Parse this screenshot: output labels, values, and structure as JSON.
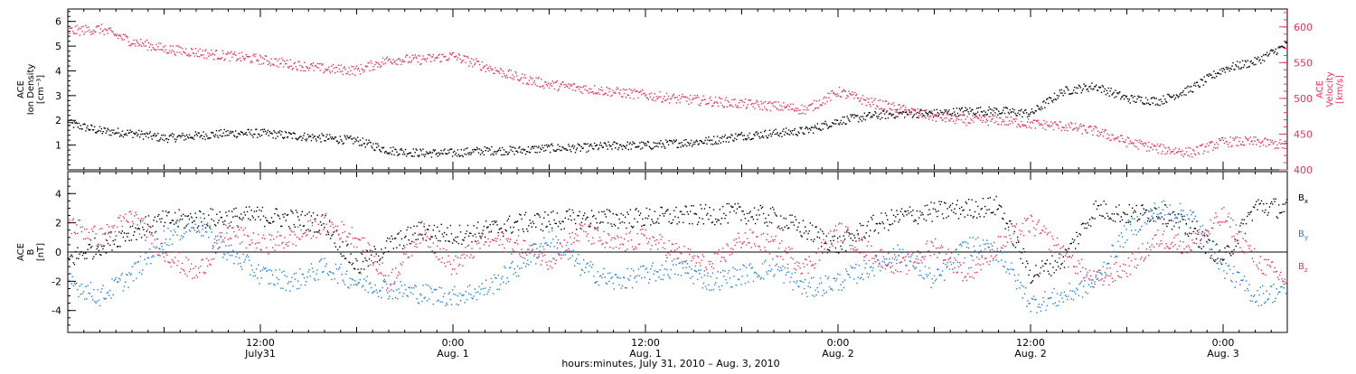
{
  "colors": {
    "density": "#000000",
    "velocity": "#e8325a",
    "bx": "#000000",
    "by": "#1e7fd6",
    "bz": "#e8325a",
    "axis": "#000000"
  },
  "xaxis": {
    "title": "hours:minutes, July 31, 2010 – Aug. 3, 2010",
    "ticks": [
      {
        "hour": 12,
        "time": "12:00",
        "date": "July31"
      },
      {
        "hour": 24,
        "time": "0:00",
        "date": "Aug. 1"
      },
      {
        "hour": 36,
        "time": "12:00",
        "date": "Aug. 1"
      },
      {
        "hour": 48,
        "time": "0:00",
        "date": "Aug. 2"
      },
      {
        "hour": 60,
        "time": "12:00",
        "date": "Aug. 2"
      },
      {
        "hour": 72,
        "time": "0:00",
        "date": "Aug. 3"
      }
    ]
  },
  "chart_data": [
    {
      "type": "scatter",
      "panel": "top",
      "xunit": "hours since 2010-07-31 00:00",
      "xlim": [
        0,
        76
      ],
      "ylabel_left": [
        "ACE",
        "Ion Density",
        "[cm⁻³]"
      ],
      "ylabel_right": [
        "ACE",
        "Velocity",
        "[km/s]"
      ],
      "ylim_left": [
        0,
        6.5
      ],
      "yticks_left": [
        1,
        2,
        3,
        4,
        5,
        6
      ],
      "ylim_right": [
        400,
        625
      ],
      "yticks_right": [
        400,
        450,
        500,
        550,
        600
      ],
      "series": [
        {
          "key": "density",
          "axis": "left",
          "x": [
            0,
            2,
            4,
            6,
            8,
            10,
            12,
            14,
            16,
            18,
            20,
            22,
            24,
            26,
            28,
            30,
            32,
            34,
            36,
            38,
            40,
            42,
            44,
            46,
            48,
            50,
            52,
            54,
            56,
            58,
            60,
            62,
            64,
            66,
            68,
            70,
            72,
            74,
            76
          ],
          "y": [
            1.9,
            1.6,
            1.5,
            1.3,
            1.4,
            1.5,
            1.5,
            1.4,
            1.3,
            1.2,
            0.8,
            0.7,
            0.7,
            0.8,
            0.8,
            0.9,
            0.9,
            1.0,
            1.0,
            1.1,
            1.2,
            1.4,
            1.5,
            1.6,
            2.0,
            2.2,
            2.3,
            2.3,
            2.4,
            2.4,
            2.3,
            3.2,
            3.4,
            2.9,
            2.8,
            3.3,
            4.1,
            4.4,
            5.1
          ]
        },
        {
          "key": "velocity",
          "axis": "right",
          "x": [
            0,
            2,
            4,
            6,
            8,
            10,
            12,
            14,
            16,
            18,
            20,
            22,
            24,
            26,
            28,
            30,
            32,
            34,
            36,
            38,
            40,
            42,
            44,
            46,
            48,
            50,
            52,
            54,
            56,
            58,
            60,
            62,
            64,
            66,
            68,
            70,
            72,
            74,
            76
          ],
          "y": [
            595,
            598,
            580,
            570,
            565,
            560,
            555,
            548,
            542,
            540,
            555,
            555,
            560,
            545,
            530,
            520,
            515,
            510,
            505,
            500,
            497,
            493,
            490,
            485,
            510,
            495,
            485,
            475,
            470,
            470,
            465,
            462,
            455,
            440,
            430,
            425,
            440,
            440,
            435
          ]
        }
      ]
    },
    {
      "type": "scatter",
      "panel": "bottom",
      "xunit": "hours since 2010-07-31 00:00",
      "xlim": [
        0,
        76
      ],
      "ylabel_left": [
        "ACE",
        "B",
        "[nT]"
      ],
      "ylim": [
        -5.5,
        5.5
      ],
      "yticks": [
        -4,
        -2,
        0,
        2,
        4
      ],
      "zero_line": true,
      "legend": "right",
      "series": [
        {
          "key": "bx",
          "name": "B",
          "sub": "x",
          "x": [
            0,
            2,
            4,
            6,
            8,
            10,
            12,
            14,
            16,
            18,
            20,
            22,
            24,
            26,
            28,
            30,
            32,
            34,
            36,
            38,
            40,
            42,
            44,
            46,
            48,
            50,
            52,
            54,
            56,
            58,
            60,
            62,
            64,
            66,
            68,
            70,
            72,
            74,
            76
          ],
          "y": [
            -0.5,
            0.5,
            1.5,
            2.2,
            2.3,
            2.4,
            2.5,
            2.3,
            2.0,
            -1.0,
            0.5,
            1.5,
            1.2,
            1.5,
            2.0,
            2.2,
            2.3,
            2.3,
            2.4,
            2.5,
            2.6,
            2.7,
            2.4,
            1.5,
            0.5,
            1.8,
            2.5,
            2.8,
            3.0,
            3.2,
            -1.5,
            -0.5,
            3.0,
            2.6,
            2.8,
            1.5,
            -0.5,
            3.2,
            3.0
          ]
        },
        {
          "key": "by",
          "name": "B",
          "sub": "y",
          "x": [
            0,
            2,
            4,
            6,
            8,
            10,
            12,
            14,
            16,
            18,
            20,
            22,
            24,
            26,
            28,
            30,
            32,
            34,
            36,
            38,
            40,
            42,
            44,
            46,
            48,
            50,
            52,
            54,
            56,
            58,
            60,
            62,
            64,
            66,
            68,
            70,
            72,
            74,
            76
          ],
          "y": [
            -2.0,
            -3.0,
            -1.5,
            1.0,
            2.0,
            0.0,
            -1.5,
            -2.0,
            -1.0,
            -2.0,
            -2.5,
            -2.8,
            -3.0,
            -2.5,
            -1.0,
            1.0,
            -1.0,
            -2.0,
            -1.5,
            -1.0,
            -2.0,
            -1.5,
            -1.0,
            -2.5,
            -2.0,
            -1.0,
            0.0,
            -2.0,
            0.5,
            0.0,
            -3.5,
            -3.0,
            -2.0,
            1.5,
            3.0,
            2.5,
            -1.0,
            -3.0,
            -2.5
          ]
        },
        {
          "key": "bz",
          "name": "B",
          "sub": "z",
          "x": [
            0,
            2,
            4,
            6,
            8,
            10,
            12,
            14,
            16,
            18,
            20,
            22,
            24,
            26,
            28,
            30,
            32,
            34,
            36,
            38,
            40,
            42,
            44,
            46,
            48,
            50,
            52,
            54,
            56,
            58,
            60,
            62,
            64,
            66,
            68,
            70,
            72,
            74,
            76
          ],
          "y": [
            2.0,
            1.0,
            2.5,
            0.0,
            -1.5,
            1.5,
            0.5,
            1.0,
            2.0,
            1.0,
            -2.0,
            1.5,
            -1.0,
            1.0,
            0.5,
            -0.5,
            1.5,
            0.5,
            1.0,
            0.0,
            -1.0,
            1.0,
            0.5,
            -1.0,
            1.5,
            0.0,
            -1.0,
            0.5,
            -1.5,
            0.5,
            2.0,
            0.0,
            -2.0,
            -1.0,
            1.0,
            0.5,
            2.5,
            -0.5,
            -2.0
          ]
        }
      ]
    }
  ]
}
